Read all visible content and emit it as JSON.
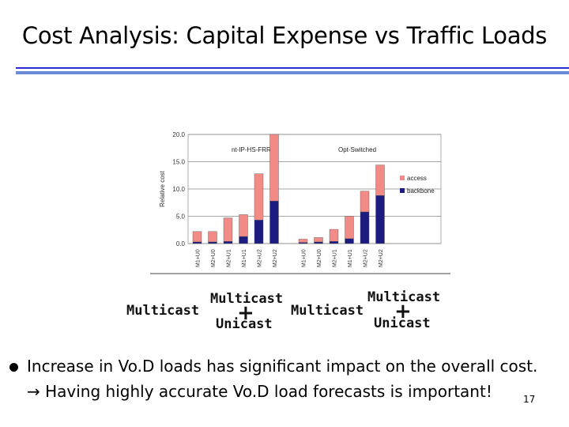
{
  "slide": {
    "title": "Cost Analysis: Capital Expense vs Traffic Loads",
    "labels": {
      "multicast_1": "Multicast",
      "multicast_2": "Multicast",
      "unicast_2": "Unicast",
      "plus_2": "+",
      "multicast_3": "Multicast",
      "multicast_4": "Multicast",
      "unicast_4": "Unicast",
      "plus_4": "+"
    },
    "bullet": "Increase in Vo.D loads has significant impact on the overall cost.",
    "arrow_text": "→ Having highly accurate Vo.D load forecasts is important!",
    "page_number": "17"
  },
  "colors": {
    "access": "#f28b85",
    "backbone": "#1c1c80",
    "rule_thin": "#2b2bd0",
    "rule_thick": "#6b8bd6"
  },
  "chart_data": {
    "type": "bar",
    "stacked": true,
    "ylabel": "Relative cost",
    "ylim": [
      0,
      20
    ],
    "yticks": [
      "0.0",
      "5.0",
      "10.0",
      "15.0",
      "20.0"
    ],
    "panel_labels": [
      "nt-IP-HS-FRR",
      "Opt-Switched"
    ],
    "groups": [
      {
        "categories": [
          "M1+U0",
          "M2+U0",
          "M2+U1",
          "M1+U1",
          "M2+U2",
          "M2+U2"
        ],
        "series": [
          {
            "name": "backbone",
            "values": [
              0.3,
              0.3,
              0.4,
              1.3,
              4.3,
              7.8
            ]
          },
          {
            "name": "access",
            "values": [
              1.9,
              1.9,
              4.3,
              4.0,
              8.5,
              12.2
            ]
          }
        ]
      },
      {
        "categories": [
          "M1+U0",
          "M2+U0",
          "M2+U1",
          "M1+U1",
          "M2+U2",
          "M2+U2"
        ],
        "series": [
          {
            "name": "backbone",
            "values": [
              0.2,
              0.3,
              0.4,
              0.9,
              5.8,
              8.8
            ]
          },
          {
            "name": "access",
            "values": [
              0.6,
              0.8,
              2.2,
              4.1,
              3.8,
              5.6
            ]
          }
        ]
      }
    ],
    "legend": [
      "access",
      "backbone"
    ],
    "legend_position": "right"
  }
}
